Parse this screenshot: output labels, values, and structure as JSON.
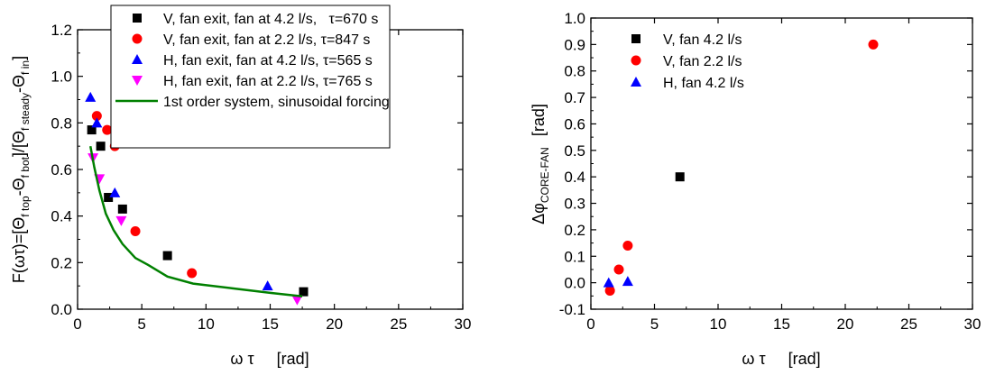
{
  "chart_data": [
    {
      "type": "scatter",
      "title": "",
      "xlabel": "ω τ     [rad]",
      "ylabel": "F(ωτ)=[Θf top-Θf bot]/[Θf steady-Θf in]",
      "ylabel_parts": {
        "p1": "F(ωτ)=[Θ",
        "s1": "f top",
        "p2": "-Θ",
        "s2": "f bot",
        "p3": "]/[Θ",
        "s3": "f steady",
        "p4": "-Θ",
        "s4": "f in",
        "p5": "]"
      },
      "xlim": [
        0,
        30
      ],
      "ylim": [
        0,
        1.2
      ],
      "xticks": [
        0,
        5,
        10,
        15,
        20,
        25,
        30
      ],
      "xtick_labels": [
        "0",
        "5",
        "10",
        "15",
        "20",
        "25",
        "30"
      ],
      "yticks": [
        0,
        0.2,
        0.4,
        0.6,
        0.8,
        1.0,
        1.2
      ],
      "ytick_labels": [
        "0.0",
        "0.2",
        "0.4",
        "0.6",
        "0.8",
        "1.0",
        "1.2"
      ],
      "legend_position": "top-right",
      "series": [
        {
          "name": "V, fan exit, fan at 4.2 l/s,   τ=670 s",
          "marker": "square",
          "color": "#000000",
          "x": [
            1.1,
            1.8,
            2.4,
            3.5,
            7.0,
            17.6
          ],
          "y": [
            0.77,
            0.7,
            0.48,
            0.43,
            0.23,
            0.075
          ]
        },
        {
          "name": "V, fan exit, fan at 2.2 l/s, τ=847 s",
          "marker": "circle",
          "color": "#ff0000",
          "x": [
            1.5,
            2.3,
            2.9,
            4.5,
            8.9
          ],
          "y": [
            0.83,
            0.77,
            0.7,
            0.335,
            0.155
          ]
        },
        {
          "name": "H, fan exit, fan at 4.2 l/s, τ=565 s",
          "marker": "triangle-up",
          "color": "#0000ff",
          "x": [
            1.0,
            1.5,
            2.9,
            14.8
          ],
          "y": [
            0.91,
            0.8,
            0.5,
            0.1
          ]
        },
        {
          "name": "H, fan exit, fan at 2.2 l/s, τ=765 s",
          "marker": "triangle-down",
          "color": "#ff00ff",
          "x": [
            1.2,
            1.7,
            3.4,
            17.1
          ],
          "y": [
            0.65,
            0.56,
            0.38,
            0.04
          ]
        },
        {
          "name": "1st order system, sinusoidal forcing",
          "marker": "line",
          "color": "#008000",
          "x": [
            1.0,
            1.3,
            1.7,
            2.2,
            2.8,
            3.5,
            4.5,
            5.5,
            7.0,
            9.0,
            12.0,
            15.0,
            17.5
          ],
          "y": [
            0.7,
            0.61,
            0.51,
            0.41,
            0.34,
            0.28,
            0.22,
            0.19,
            0.14,
            0.11,
            0.09,
            0.07,
            0.055
          ]
        }
      ]
    },
    {
      "type": "scatter",
      "title": "",
      "xlabel": "ω τ     [rad]",
      "ylabel": "Δφ CORE-FAN  [rad]",
      "ylabel_parts": {
        "main": "Δφ",
        "sub": "CORE-FAN",
        "unit": "[rad]"
      },
      "xlim": [
        0,
        30
      ],
      "ylim": [
        -0.1,
        1.0
      ],
      "xticks": [
        0,
        5,
        10,
        15,
        20,
        25,
        30
      ],
      "xtick_labels": [
        "0",
        "5",
        "10",
        "15",
        "20",
        "25",
        "30"
      ],
      "yticks": [
        -0.1,
        0.0,
        0.1,
        0.2,
        0.3,
        0.4,
        0.5,
        0.6,
        0.7,
        0.8,
        0.9,
        1.0
      ],
      "ytick_labels": [
        "-0.1",
        "0.0",
        "0.1",
        "0.2",
        "0.3",
        "0.4",
        "0.5",
        "0.6",
        "0.7",
        "0.8",
        "0.9",
        "1.0"
      ],
      "legend_position": "top-left",
      "series": [
        {
          "name": "V, fan 4.2 l/s",
          "marker": "square",
          "color": "#000000",
          "x": [
            7.0
          ],
          "y": [
            0.4
          ]
        },
        {
          "name": "V, fan 2.2 l/s",
          "marker": "circle",
          "color": "#ff0000",
          "x": [
            1.5,
            2.2,
            2.9,
            22.2
          ],
          "y": [
            -0.03,
            0.05,
            0.14,
            0.9
          ]
        },
        {
          "name": "H, fan 4.2 l/s",
          "marker": "triangle-up",
          "color": "#0000ff",
          "x": [
            1.4,
            2.9
          ],
          "y": [
            0.0,
            0.005
          ]
        }
      ]
    }
  ]
}
